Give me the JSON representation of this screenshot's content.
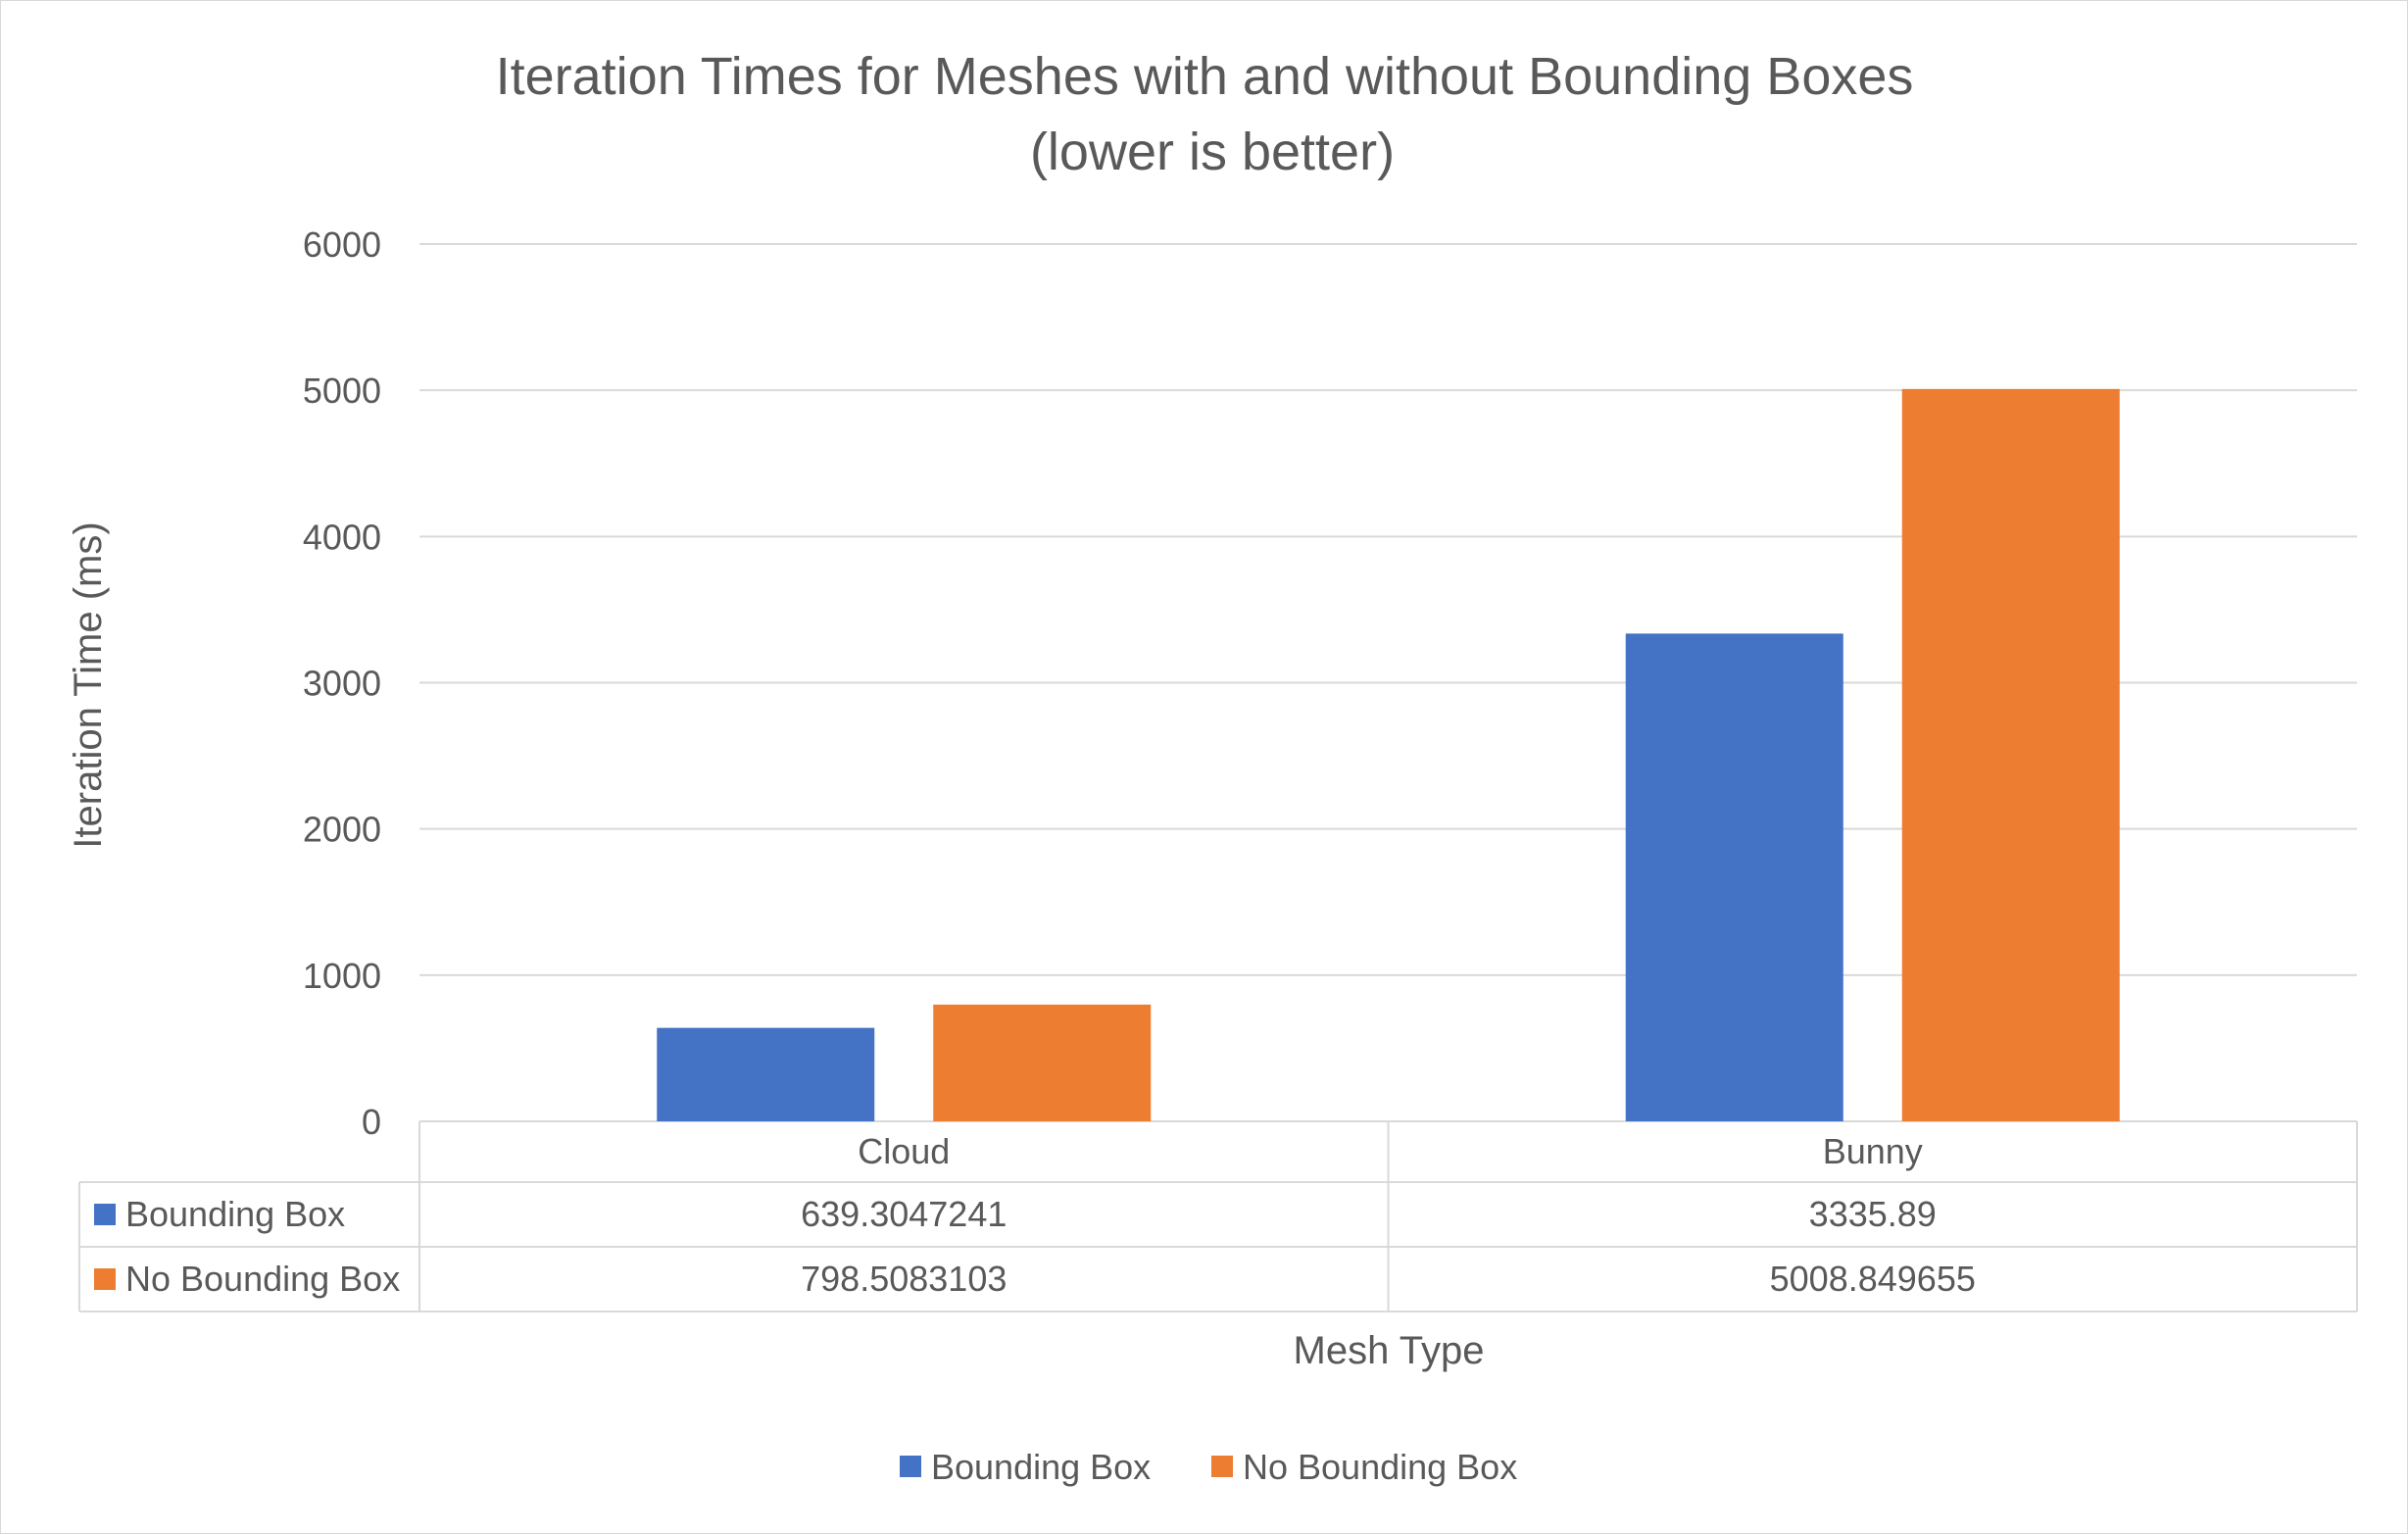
{
  "chart_data": {
    "type": "bar",
    "title": "Iteration Times for Meshes with and without Bounding Boxes",
    "subtitle": "(lower is better)",
    "xlabel": "Mesh Type",
    "ylabel": "Iteration Time (ms)",
    "ylim": [
      0,
      6000
    ],
    "yticks": [
      0,
      1000,
      2000,
      3000,
      4000,
      5000,
      6000
    ],
    "ytick_labels": [
      "0",
      "1000",
      "2000",
      "3000",
      "4000",
      "5000",
      "6000"
    ],
    "grid": true,
    "legend_position": "bottom",
    "categories": [
      "Cloud",
      "Bunny"
    ],
    "series": [
      {
        "name": "Bounding Box",
        "color": "#4472c4",
        "values": [
          639.3047241,
          3335.89
        ],
        "value_labels": [
          "639.3047241",
          "3335.89"
        ]
      },
      {
        "name": "No Bounding Box",
        "color": "#ed7d31",
        "values": [
          798.5083103,
          5008.849655
        ],
        "value_labels": [
          "798.5083103",
          "5008.849655"
        ]
      }
    ],
    "data_table": true
  }
}
